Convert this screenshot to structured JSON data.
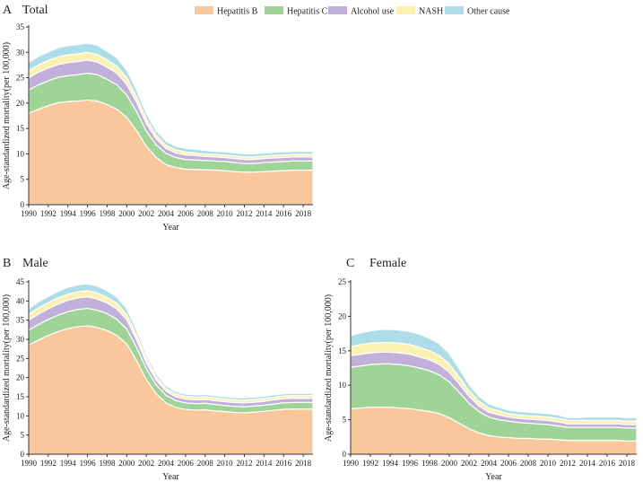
{
  "legend": [
    {
      "name": "Hepatitis B",
      "color": "#F8C79B"
    },
    {
      "name": "Hepatitis C",
      "color": "#9ED597"
    },
    {
      "name": "Alcohol use",
      "color": "#C3B0DA"
    },
    {
      "name": "NASH",
      "color": "#FCF1B0"
    },
    {
      "name": "Other cause",
      "color": "#ADDDE6"
    }
  ],
  "chart_data": [
    {
      "type": "area",
      "stacked": true,
      "panel_letter": "A",
      "title": "Total",
      "xlabel": "Year",
      "ylabel": "Age-standardized mortality(per 100,000)",
      "xlim": [
        1990,
        2019
      ],
      "ylim": [
        0,
        35
      ],
      "xticks": [
        "1990",
        "1992",
        "1994",
        "1996",
        "1998",
        "2000",
        "2002",
        "2004",
        "2006",
        "2008",
        "2010",
        "2012",
        "2014",
        "2016",
        "2018"
      ],
      "yticks": [
        "0",
        "5",
        "10",
        "15",
        "20",
        "25",
        "30",
        "35"
      ],
      "x": [
        1990,
        1991,
        1992,
        1993,
        1994,
        1995,
        1996,
        1997,
        1998,
        1999,
        2000,
        2001,
        2002,
        2003,
        2004,
        2005,
        2006,
        2007,
        2008,
        2009,
        2010,
        2011,
        2012,
        2013,
        2014,
        2015,
        2016,
        2017,
        2018,
        2019
      ],
      "series": [
        {
          "name": "Hepatitis B",
          "values": [
            18,
            18.8,
            19.5,
            20.1,
            20.3,
            20.4,
            20.6,
            20.4,
            19.7,
            18.8,
            17.2,
            14.6,
            11.5,
            9.3,
            7.9,
            7.3,
            7.0,
            6.9,
            6.9,
            6.8,
            6.7,
            6.5,
            6.4,
            6.4,
            6.5,
            6.6,
            6.7,
            6.8,
            6.8,
            6.8
          ]
        },
        {
          "name": "Hepatitis C",
          "values": [
            4.6,
            4.8,
            4.9,
            5.0,
            5.1,
            5.2,
            5.3,
            5.2,
            5.0,
            4.8,
            4.4,
            3.8,
            3.0,
            2.5,
            2.2,
            2.0,
            1.9,
            1.9,
            1.8,
            1.8,
            1.8,
            1.8,
            1.7,
            1.7,
            1.8,
            1.8,
            1.8,
            1.8,
            1.8,
            1.8
          ]
        },
        {
          "name": "Alcohol use",
          "values": [
            2.4,
            2.5,
            2.5,
            2.5,
            2.6,
            2.6,
            2.6,
            2.5,
            2.4,
            2.3,
            2.1,
            1.8,
            1.5,
            1.2,
            1.0,
            0.9,
            0.9,
            0.9,
            0.8,
            0.8,
            0.8,
            0.8,
            0.8,
            0.8,
            0.8,
            0.8,
            0.8,
            0.8,
            0.8,
            0.8
          ]
        },
        {
          "name": "NASH",
          "values": [
            1.4,
            1.4,
            1.5,
            1.5,
            1.5,
            1.5,
            1.5,
            1.5,
            1.4,
            1.4,
            1.3,
            1.1,
            0.9,
            0.7,
            0.6,
            0.6,
            0.6,
            0.5,
            0.5,
            0.5,
            0.5,
            0.5,
            0.5,
            0.5,
            0.5,
            0.5,
            0.5,
            0.5,
            0.5,
            0.5
          ]
        },
        {
          "name": "Other cause",
          "values": [
            1.6,
            1.7,
            1.7,
            1.8,
            1.8,
            1.8,
            1.8,
            1.8,
            1.7,
            1.6,
            1.5,
            1.3,
            1.1,
            0.9,
            0.8,
            0.7,
            0.7,
            0.7,
            0.7,
            0.6,
            0.6,
            0.6,
            0.6,
            0.6,
            0.6,
            0.6,
            0.6,
            0.6,
            0.6,
            0.6
          ]
        }
      ]
    },
    {
      "type": "area",
      "stacked": true,
      "panel_letter": "B",
      "title": "Male",
      "xlabel": "Year",
      "ylabel": "Age-standardized mortality(per 100,000)",
      "xlim": [
        1990,
        2019
      ],
      "ylim": [
        0,
        45
      ],
      "xticks": [
        "1990",
        "1992",
        "1994",
        "1996",
        "1998",
        "2000",
        "2002",
        "2004",
        "2006",
        "2008",
        "2010",
        "2012",
        "2014",
        "2016",
        "2018"
      ],
      "yticks": [
        "0",
        "5",
        "10",
        "15",
        "20",
        "25",
        "30",
        "35",
        "40",
        "45"
      ],
      "x": [
        1990,
        1991,
        1992,
        1993,
        1994,
        1995,
        1996,
        1997,
        1998,
        1999,
        2000,
        2001,
        2002,
        2003,
        2004,
        2005,
        2006,
        2007,
        2008,
        2009,
        2010,
        2011,
        2012,
        2013,
        2014,
        2015,
        2016,
        2017,
        2018,
        2019
      ],
      "series": [
        {
          "name": "Hepatitis B",
          "values": [
            28.5,
            29.8,
            31,
            32,
            32.8,
            33.3,
            33.5,
            33.1,
            32.3,
            31,
            28.8,
            24.5,
            19.5,
            15.8,
            13.4,
            12.2,
            11.7,
            11.5,
            11.6,
            11.3,
            11.1,
            10.9,
            10.8,
            11,
            11.2,
            11.5,
            11.7,
            11.8,
            11.8,
            11.8
          ]
        },
        {
          "name": "Hepatitis C",
          "values": [
            3.9,
            4.1,
            4.2,
            4.3,
            4.4,
            4.5,
            4.6,
            4.5,
            4.4,
            4.2,
            3.9,
            3.4,
            2.8,
            2.3,
            2.0,
            1.8,
            1.7,
            1.7,
            1.7,
            1.7,
            1.6,
            1.6,
            1.6,
            1.6,
            1.6,
            1.6,
            1.7,
            1.7,
            1.7,
            1.7
          ]
        },
        {
          "name": "Alcohol use",
          "values": [
            2.6,
            2.7,
            2.8,
            2.9,
            3.0,
            3.0,
            3.0,
            2.9,
            2.8,
            2.7,
            2.4,
            2.0,
            1.6,
            1.3,
            1.1,
            1.0,
            1.0,
            1.0,
            1.0,
            1.0,
            1.0,
            1.0,
            1.0,
            1.0,
            1.0,
            1.1,
            1.1,
            1.1,
            1.1,
            1.1
          ]
        },
        {
          "name": "NASH",
          "values": [
            1.5,
            1.6,
            1.6,
            1.6,
            1.6,
            1.6,
            1.6,
            1.6,
            1.5,
            1.5,
            1.4,
            1.2,
            1.0,
            0.8,
            0.7,
            0.7,
            0.7,
            0.7,
            0.7,
            0.7,
            0.7,
            0.7,
            0.7,
            0.7,
            0.7,
            0.7,
            0.7,
            0.7,
            0.7,
            0.7
          ]
        },
        {
          "name": "Other cause",
          "values": [
            1.5,
            1.6,
            1.6,
            1.7,
            1.8,
            1.8,
            1.8,
            1.8,
            1.7,
            1.6,
            1.5,
            1.3,
            1.0,
            0.8,
            0.7,
            0.6,
            0.6,
            0.6,
            0.6,
            0.6,
            0.6,
            0.6,
            0.6,
            0.6,
            0.6,
            0.6,
            0.6,
            0.6,
            0.6,
            0.6
          ]
        }
      ]
    },
    {
      "type": "area",
      "stacked": true,
      "panel_letter": "C",
      "title": "Female",
      "xlabel": "Year",
      "ylabel": "Age-standardized mortality(per 100,000)",
      "xlim": [
        1990,
        2019
      ],
      "ylim": [
        0,
        25
      ],
      "xticks": [
        "1990",
        "1992",
        "1994",
        "1996",
        "1998",
        "2000",
        "2002",
        "2004",
        "2006",
        "2008",
        "2010",
        "2012",
        "2014",
        "2016",
        "2018"
      ],
      "yticks": [
        "0",
        "5",
        "10",
        "15",
        "20",
        "25"
      ],
      "x": [
        1990,
        1991,
        1992,
        1993,
        1994,
        1995,
        1996,
        1997,
        1998,
        1999,
        2000,
        2001,
        2002,
        2003,
        2004,
        2005,
        2006,
        2007,
        2008,
        2009,
        2010,
        2011,
        2012,
        2013,
        2014,
        2015,
        2016,
        2017,
        2018,
        2019
      ],
      "series": [
        {
          "name": "Hepatitis B",
          "values": [
            6.6,
            6.7,
            6.8,
            6.8,
            6.8,
            6.7,
            6.6,
            6.4,
            6.2,
            5.9,
            5.3,
            4.5,
            3.7,
            3.1,
            2.7,
            2.5,
            2.4,
            2.3,
            2.3,
            2.2,
            2.2,
            2.1,
            2.0,
            2.0,
            2.0,
            2.0,
            2.0,
            2.0,
            1.9,
            1.9
          ]
        },
        {
          "name": "Hepatitis C",
          "values": [
            6.0,
            6.1,
            6.2,
            6.3,
            6.3,
            6.3,
            6.2,
            6.1,
            5.9,
            5.6,
            5.2,
            4.5,
            3.7,
            3.1,
            2.7,
            2.5,
            2.4,
            2.3,
            2.2,
            2.2,
            2.1,
            2.0,
            1.9,
            1.9,
            1.9,
            1.9,
            1.9,
            1.9,
            1.9,
            1.9
          ]
        },
        {
          "name": "Alcohol use",
          "values": [
            1.7,
            1.7,
            1.7,
            1.7,
            1.7,
            1.7,
            1.7,
            1.6,
            1.6,
            1.5,
            1.4,
            1.2,
            1.0,
            0.8,
            0.7,
            0.7,
            0.6,
            0.6,
            0.6,
            0.6,
            0.6,
            0.6,
            0.5,
            0.5,
            0.5,
            0.5,
            0.5,
            0.5,
            0.5,
            0.5
          ]
        },
        {
          "name": "NASH",
          "values": [
            1.3,
            1.4,
            1.4,
            1.4,
            1.4,
            1.4,
            1.4,
            1.4,
            1.3,
            1.3,
            1.2,
            1.0,
            0.8,
            0.7,
            0.6,
            0.6,
            0.5,
            0.5,
            0.5,
            0.5,
            0.5,
            0.5,
            0.5,
            0.5,
            0.5,
            0.5,
            0.5,
            0.5,
            0.5,
            0.5
          ]
        },
        {
          "name": "Other cause",
          "values": [
            1.6,
            1.7,
            1.8,
            1.9,
            1.9,
            1.9,
            1.9,
            1.9,
            1.8,
            1.7,
            1.5,
            1.2,
            0.9,
            0.7,
            0.6,
            0.5,
            0.5,
            0.5,
            0.5,
            0.5,
            0.5,
            0.5,
            0.4,
            0.4,
            0.5,
            0.5,
            0.5,
            0.5,
            0.5,
            0.5
          ]
        }
      ]
    }
  ]
}
